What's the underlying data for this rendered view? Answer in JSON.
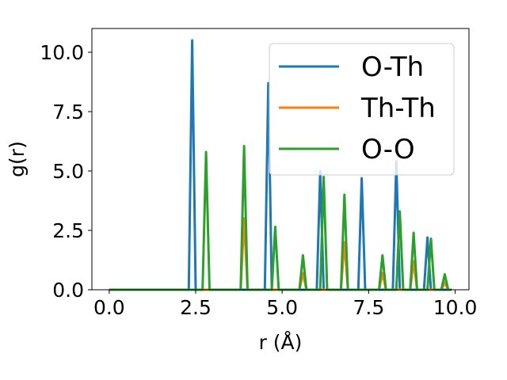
{
  "chart_data": {
    "type": "line",
    "xlabel": "r (Å)",
    "ylabel": "g(r)",
    "xlim": [
      -0.5,
      10.4
    ],
    "ylim": [
      0,
      11
    ],
    "xticks": [
      0.0,
      2.5,
      5.0,
      7.5,
      10.0
    ],
    "xtick_labels": [
      "0.0",
      "2.5",
      "5.0",
      "7.5",
      "10.0"
    ],
    "yticks": [
      0.0,
      2.5,
      5.0,
      7.5,
      10.0
    ],
    "ytick_labels": [
      "0.0",
      "2.5",
      "5.0",
      "7.5",
      "10.0"
    ],
    "grid": false,
    "legend_position": "top-right",
    "series": [
      {
        "name": "O-Th",
        "color": "#1f77b4",
        "x": [
          0,
          2.3,
          2.4,
          2.5,
          4.5,
          4.6,
          4.7,
          6.0,
          6.1,
          6.2,
          7.2,
          7.3,
          7.4,
          8.2,
          8.3,
          8.4,
          9.1,
          9.2,
          9.3,
          9.9
        ],
        "y": [
          0,
          0,
          10.5,
          0,
          0,
          8.7,
          0,
          0,
          5.0,
          0,
          0,
          4.7,
          0,
          0,
          5.4,
          0,
          0,
          2.2,
          0,
          0
        ]
      },
      {
        "name": "Th-Th",
        "color": "#ff7f0e",
        "x": [
          0,
          3.8,
          3.9,
          4.0,
          5.5,
          5.6,
          5.7,
          6.7,
          6.8,
          6.9,
          7.8,
          7.9,
          8.0,
          8.7,
          8.8,
          8.9,
          9.6,
          9.7,
          9.8,
          9.9
        ],
        "y": [
          0,
          0,
          3.0,
          0,
          0,
          0.7,
          0,
          0,
          2.0,
          0,
          0,
          0.7,
          0,
          0,
          1.2,
          0,
          0,
          0.3,
          0,
          0
        ]
      },
      {
        "name": "O-O",
        "color": "#2ca02c",
        "x": [
          0,
          2.7,
          2.8,
          2.9,
          3.8,
          3.9,
          4.0,
          4.7,
          4.8,
          4.9,
          5.5,
          5.6,
          5.7,
          6.1,
          6.2,
          6.3,
          6.7,
          6.8,
          6.9,
          7.8,
          7.9,
          8.0,
          8.3,
          8.4,
          8.5,
          8.7,
          8.8,
          8.9,
          9.2,
          9.3,
          9.4,
          9.6,
          9.7,
          9.8,
          9.9
        ],
        "y": [
          0,
          0,
          5.8,
          0,
          0,
          6.05,
          0,
          0,
          2.65,
          0,
          0,
          1.45,
          0,
          0,
          4.75,
          0,
          0,
          4.0,
          0,
          0,
          1.45,
          0,
          0,
          3.3,
          0,
          0,
          2.4,
          0,
          0,
          2.15,
          0,
          0,
          0.65,
          0,
          0
        ]
      }
    ]
  }
}
